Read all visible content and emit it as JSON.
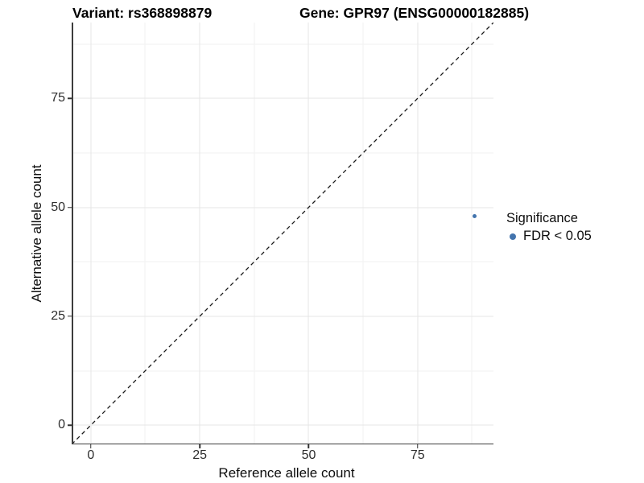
{
  "titles": {
    "variant": "Variant: rs368898879",
    "gene": "Gene: GPR97 (ENSG00000182885)"
  },
  "chart_data": {
    "type": "scatter",
    "title_left": "Variant: rs368898879",
    "title_right": "Gene: GPR97 (ENSG00000182885)",
    "xlabel": "Reference allele count",
    "ylabel": "Alternative allele count",
    "xlim": [
      -4.4,
      92.4
    ],
    "ylim": [
      -4.4,
      92.4
    ],
    "x_ticks": [
      0,
      25,
      50,
      75
    ],
    "y_ticks": [
      0,
      25,
      50,
      75
    ],
    "minor_gridlines": [
      12.5,
      37.5,
      62.5,
      87.5
    ],
    "grid": "on",
    "identity_line": {
      "from": [
        -4.4,
        -4.4
      ],
      "to": [
        92.4,
        92.4
      ],
      "style": "dashed",
      "color": "#1a1a1a"
    },
    "points": [
      {
        "x": 88,
        "y": 48,
        "series": "FDR < 0.05"
      }
    ],
    "legend": {
      "position": "right",
      "title": "Significance",
      "items": [
        {
          "label": "FDR < 0.05",
          "color": "#4374ad"
        }
      ]
    },
    "style": {
      "point_color": "#4374ad",
      "point_radius": 2.6,
      "legend_dot_radius": 4,
      "major_grid_color": "#e6e6e6",
      "minor_grid_color": "#f2f2f2",
      "axis_line_color": "#3d3d3d"
    }
  }
}
